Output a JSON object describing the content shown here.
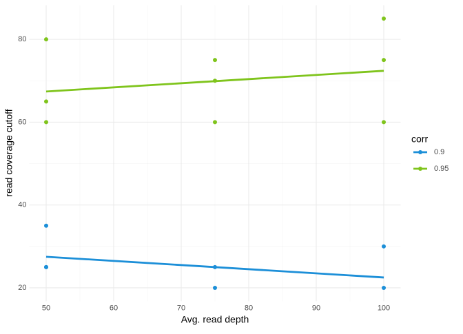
{
  "chart_data": {
    "type": "scatter",
    "xlabel": "Avg. read depth",
    "ylabel": "read coverage cutoff",
    "legend_title": "corr",
    "legend": "right",
    "xlim": [
      47.5,
      102.5
    ],
    "xticks": [
      50,
      60,
      70,
      80,
      90,
      100
    ],
    "xminor": [
      55,
      65,
      75,
      85,
      95
    ],
    "ylim": [
      16.75,
      88.25
    ],
    "yticks": [
      20,
      40,
      60,
      80
    ],
    "yminor": [
      30,
      50,
      70
    ],
    "grid": true,
    "series": [
      {
        "name": "0.9",
        "color": "#1c8fd8",
        "x": [
          50,
          50,
          50,
          75,
          75,
          100,
          100
        ],
        "values": [
          35,
          25,
          25,
          25,
          20,
          30,
          20
        ],
        "trend": {
          "x": [
            50,
            100
          ],
          "values": [
            27.5,
            22.5
          ]
        }
      },
      {
        "name": "0.95",
        "color": "#7fc41c",
        "x": [
          50,
          50,
          50,
          75,
          75,
          75,
          100,
          100,
          100
        ],
        "values": [
          80,
          65,
          60,
          75,
          70,
          60,
          85,
          75,
          60
        ],
        "trend": {
          "x": [
            50,
            100
          ],
          "values": [
            67.4,
            72.4
          ]
        }
      }
    ]
  }
}
